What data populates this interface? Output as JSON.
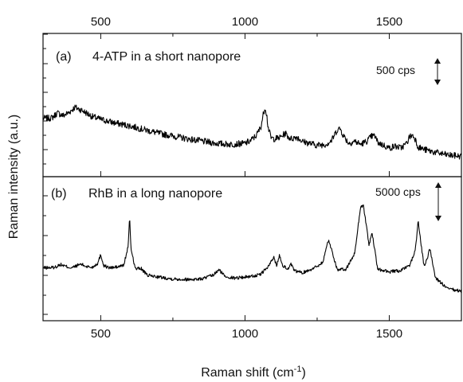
{
  "chart_data": {
    "type": "line",
    "xlabel": "Raman shift (cm",
    "xlabel_sup": "-1",
    "xlabel_close": ")",
    "ylabel": "Raman intensity (a.u.)",
    "xlim": [
      300,
      1750
    ],
    "xticks": [
      500,
      1000,
      1500
    ],
    "top_axis_ticks": [
      500,
      1000,
      1500
    ],
    "panels": [
      {
        "panel_label": "(a)",
        "title": "4-ATP in a short nanopore",
        "scale_bar_label": "500 cps",
        "series": [
          {
            "x": [
              300,
              330,
              350,
              370,
              390,
              410,
              430,
              450,
              470,
              500,
              550,
              600,
              650,
              700,
              750,
              800,
              850,
              900,
              950,
              1000,
              1020,
              1040,
              1055,
              1065,
              1070,
              1075,
              1080,
              1090,
              1100,
              1120,
              1140,
              1150,
              1160,
              1180,
              1200,
              1250,
              1280,
              1300,
              1320,
              1330,
              1340,
              1360,
              1380,
              1400,
              1420,
              1440,
              1450,
              1460,
              1480,
              1500,
              1520,
              1540,
              1560,
              1570,
              1580,
              1590,
              1600,
              1620,
              1650,
              1700,
              1750
            ],
            "y": [
              960,
              970,
              1080,
              1020,
              1090,
              1200,
              1150,
              1080,
              1000,
              940,
              860,
              800,
              720,
              640,
              580,
              520,
              470,
              420,
              400,
              420,
              480,
              600,
              780,
              1100,
              1200,
              1050,
              780,
              540,
              520,
              540,
              640,
              560,
              520,
              560,
              460,
              380,
              400,
              480,
              720,
              740,
              600,
              420,
              470,
              400,
              460,
              580,
              580,
              440,
              380,
              320,
              360,
              320,
              420,
              560,
              600,
              520,
              340,
              290,
              240,
              170,
              140
            ]
          }
        ]
      },
      {
        "panel_label": "(b)",
        "title": "RhB in a long nanopore",
        "scale_bar_label": "5000 cps",
        "series": [
          {
            "x": [
              300,
              340,
              360,
              380,
              400,
              430,
              450,
              470,
              490,
              500,
              510,
              530,
              560,
              580,
              595,
              600,
              605,
              620,
              640,
              660,
              700,
              750,
              800,
              850,
              890,
              910,
              930,
              960,
              1000,
              1050,
              1080,
              1100,
              1110,
              1120,
              1130,
              1150,
              1160,
              1170,
              1200,
              1240,
              1270,
              1285,
              1290,
              1300,
              1320,
              1350,
              1380,
              1400,
              1410,
              1420,
              1430,
              1440,
              1450,
              1460,
              1500,
              1540,
              1570,
              1590,
              1600,
              1610,
              1620,
              1630,
              1640,
              1660,
              1700,
              1750
            ],
            "y": [
              5000,
              5100,
              5700,
              5300,
              5000,
              5800,
              5300,
              5100,
              6000,
              7800,
              5500,
              5000,
              5200,
              5600,
              9500,
              15500,
              9000,
              4800,
              4900,
              3500,
              3100,
              2700,
              2600,
              2700,
              3500,
              4600,
              3300,
              2900,
              3100,
              3500,
              5200,
              7200,
              5500,
              7700,
              5600,
              4700,
              5800,
              4400,
              4000,
              5000,
              6200,
              10000,
              10800,
              8800,
              4600,
              4700,
              8000,
              17500,
              18100,
              14000,
              9800,
              12300,
              8600,
              4700,
              4200,
              4400,
              5500,
              8500,
              14800,
              10000,
              5500,
              6500,
              9200,
              3000,
              700,
              100
            ]
          }
        ]
      }
    ]
  }
}
